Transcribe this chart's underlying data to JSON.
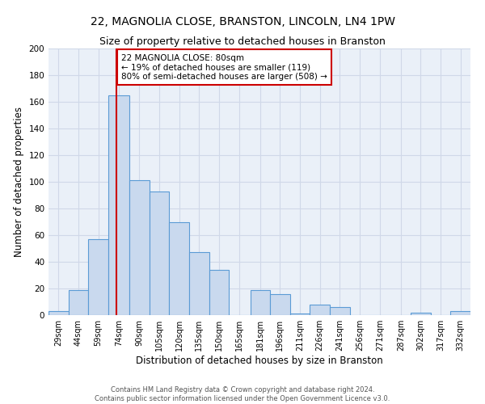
{
  "title": "22, MAGNOLIA CLOSE, BRANSTON, LINCOLN, LN4 1PW",
  "subtitle": "Size of property relative to detached houses in Branston",
  "xlabel": "Distribution of detached houses by size in Branston",
  "ylabel": "Number of detached properties",
  "bar_left_edges": [
    29,
    44,
    59,
    74,
    90,
    105,
    120,
    135,
    150,
    165,
    181,
    196,
    211,
    226,
    241,
    256,
    271,
    287,
    302,
    317,
    332
  ],
  "bar_widths": [
    15,
    15,
    15,
    16,
    15,
    15,
    15,
    15,
    15,
    16,
    15,
    15,
    15,
    15,
    15,
    15,
    16,
    15,
    15,
    15,
    15
  ],
  "bar_heights": [
    3,
    19,
    57,
    165,
    101,
    93,
    70,
    47,
    34,
    0,
    19,
    16,
    1,
    8,
    6,
    0,
    0,
    0,
    2,
    0,
    3
  ],
  "bar_color": "#c9d9ee",
  "bar_edge_color": "#5b9bd5",
  "tick_labels": [
    "29sqm",
    "44sqm",
    "59sqm",
    "74sqm",
    "90sqm",
    "105sqm",
    "120sqm",
    "135sqm",
    "150sqm",
    "165sqm",
    "181sqm",
    "196sqm",
    "211sqm",
    "226sqm",
    "241sqm",
    "256sqm",
    "271sqm",
    "287sqm",
    "302sqm",
    "317sqm",
    "332sqm"
  ],
  "vline_x": 80,
  "vline_color": "#cc0000",
  "annotation_title": "22 MAGNOLIA CLOSE: 80sqm",
  "annotation_line1": "← 19% of detached houses are smaller (119)",
  "annotation_line2": "80% of semi-detached houses are larger (508) →",
  "annotation_box_color": "#cc0000",
  "ylim": [
    0,
    200
  ],
  "yticks": [
    0,
    20,
    40,
    60,
    80,
    100,
    120,
    140,
    160,
    180,
    200
  ],
  "grid_color": "#d0d8e8",
  "bg_color": "#eaf0f8",
  "footer1": "Contains HM Land Registry data © Crown copyright and database right 2024.",
  "footer2": "Contains public sector information licensed under the Open Government Licence v3.0.",
  "title_fontsize": 10,
  "subtitle_fontsize": 9,
  "xlabel_fontsize": 8.5,
  "ylabel_fontsize": 8.5,
  "tick_fontsize": 7,
  "ytick_fontsize": 7.5
}
